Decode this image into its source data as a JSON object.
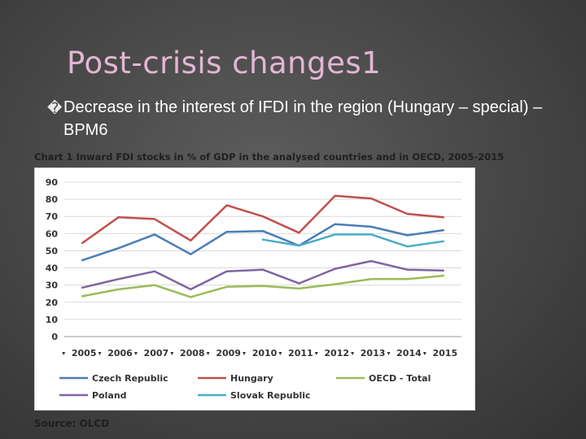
{
  "slide": {
    "title": "Post-crisis changes1",
    "bullet_glyph": "�",
    "bullet_text": "Decrease in the interest of IFDI in the region (Hungary – special) – BPM6",
    "source": "Source: OLCD"
  },
  "colors": {
    "title": "#e3b6d3",
    "czech": "#4a7db5",
    "hungary": "#c0504d",
    "oecd": "#9bbb59",
    "poland": "#8064a2",
    "slovak": "#4bacc6"
  },
  "chart_data": {
    "type": "line",
    "title": "Chart 1 Inward FDI stocks in % of GDP in the analysed countries and in OECD, 2005-2015",
    "x": [
      "2005",
      "2006",
      "2007",
      "2008",
      "2009",
      "2010",
      "2011",
      "2012",
      "2013",
      "2014",
      "2015"
    ],
    "ylim": [
      0,
      90
    ],
    "yticks": [
      0,
      10,
      20,
      30,
      40,
      50,
      60,
      70,
      80,
      90
    ],
    "grid": true,
    "legend_position": "bottom",
    "series": [
      {
        "name": "Czech Republic",
        "color": "#4a7db5",
        "values": [
          44.5,
          51.5,
          59.5,
          48,
          61,
          61.5,
          53,
          65.5,
          64,
          59,
          62
        ]
      },
      {
        "name": "Hungary",
        "color": "#c0504d",
        "values": [
          54.5,
          69.5,
          68.5,
          56,
          76.5,
          70,
          60.5,
          82,
          80.5,
          71.5,
          69.5
        ]
      },
      {
        "name": "OECD - Total",
        "color": "#9bbb59",
        "values": [
          23.5,
          27.5,
          30,
          23,
          29,
          29.5,
          28,
          30.5,
          33.5,
          33.5,
          35.5
        ]
      },
      {
        "name": "Poland",
        "color": "#8064a2",
        "values": [
          28.5,
          33.5,
          38,
          27.5,
          38,
          39,
          31,
          39.5,
          44,
          39,
          38.5
        ]
      },
      {
        "name": "Slovak Republic",
        "color": "#4bacc6",
        "values": [
          null,
          null,
          null,
          null,
          null,
          56.5,
          53,
          59.5,
          59.5,
          52.5,
          55.5
        ]
      }
    ]
  }
}
